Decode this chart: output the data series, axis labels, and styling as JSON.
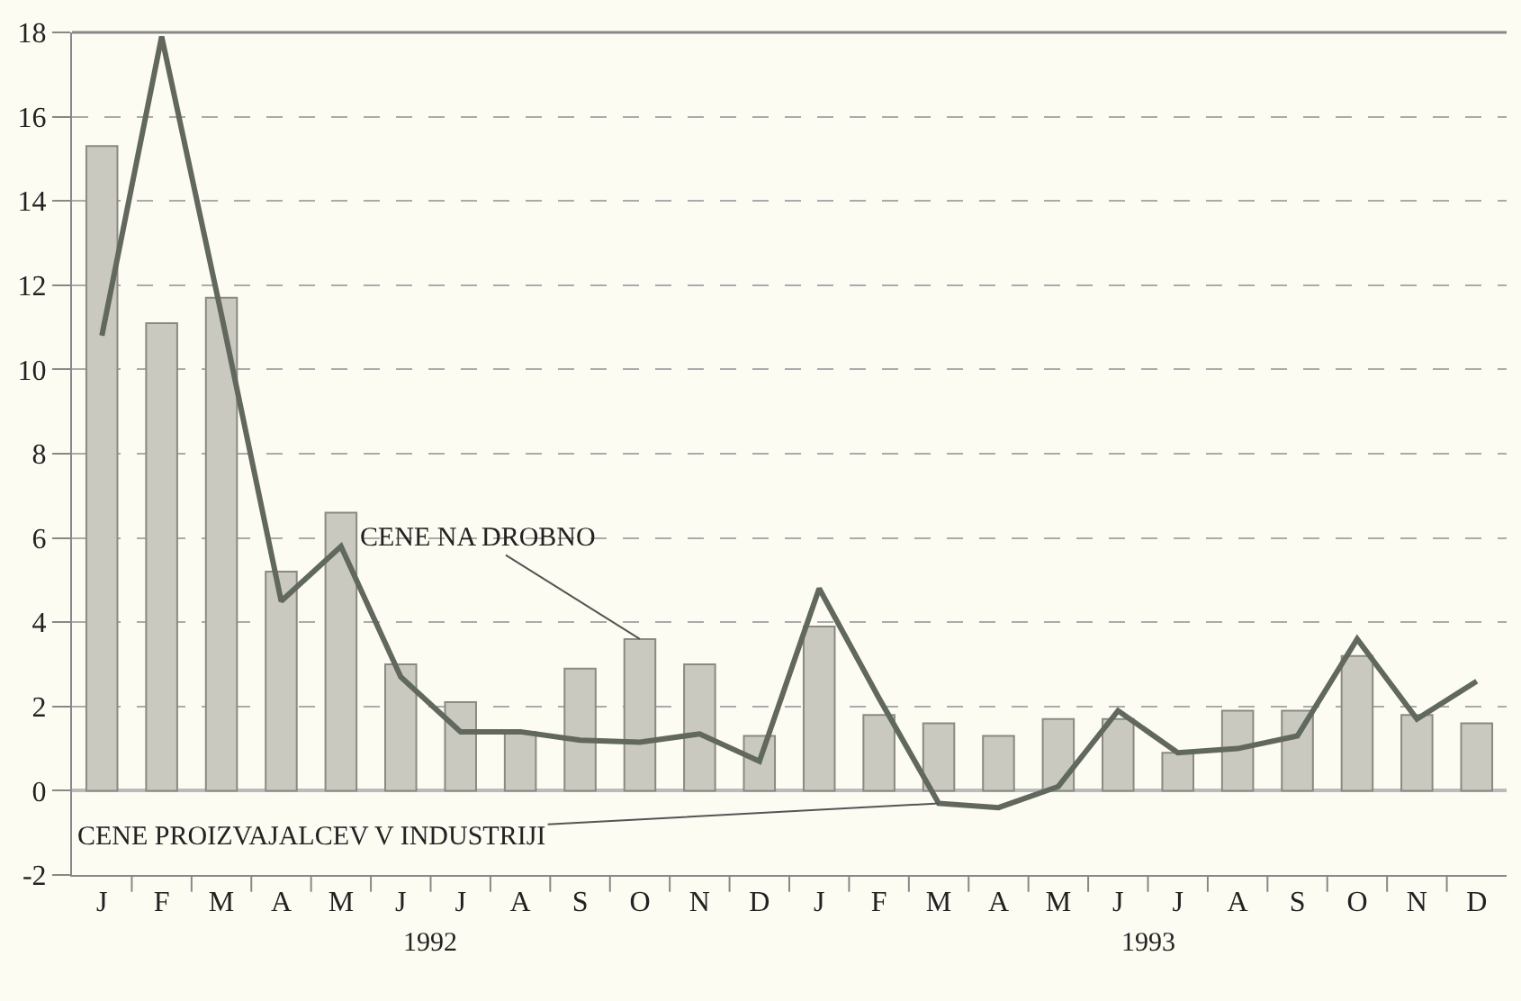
{
  "chart_data": {
    "type": "bar",
    "categories": [
      "J",
      "F",
      "M",
      "A",
      "M",
      "J",
      "J",
      "A",
      "S",
      "O",
      "N",
      "D",
      "J",
      "F",
      "M",
      "A",
      "M",
      "J",
      "J",
      "A",
      "S",
      "O",
      "N",
      "D"
    ],
    "series": [
      {
        "name": "CENE NA DROBNO",
        "color": "#c9c9c0",
        "values": [
          15.3,
          11.1,
          11.7,
          5.2,
          6.6,
          3.0,
          2.1,
          1.4,
          2.9,
          3.6,
          3.0,
          1.3,
          3.9,
          1.8,
          1.6,
          1.3,
          1.7,
          1.7,
          0.9,
          1.9,
          1.9,
          3.2,
          1.8,
          1.6
        ]
      },
      {
        "name": "CENE PROIZVAJALCEV V INDUSTRIJI",
        "type": "line",
        "color": "#61685e",
        "values": [
          10.8,
          17.9,
          11.3,
          4.5,
          5.8,
          2.7,
          1.4,
          1.4,
          1.2,
          1.15,
          1.35,
          0.7,
          4.8,
          2.2,
          -0.3,
          -0.4,
          0.1,
          1.9,
          0.9,
          1.0,
          1.3,
          3.6,
          1.7,
          2.6
        ]
      }
    ],
    "annotations": [
      "1992",
      "1993"
    ],
    "ylim": [
      -2,
      18
    ],
    "yticks": [
      -2,
      0,
      2,
      4,
      6,
      8,
      10,
      12,
      14,
      16,
      18
    ],
    "grid": "y",
    "legend": false,
    "marker": "none",
    "line_style": "solid"
  }
}
